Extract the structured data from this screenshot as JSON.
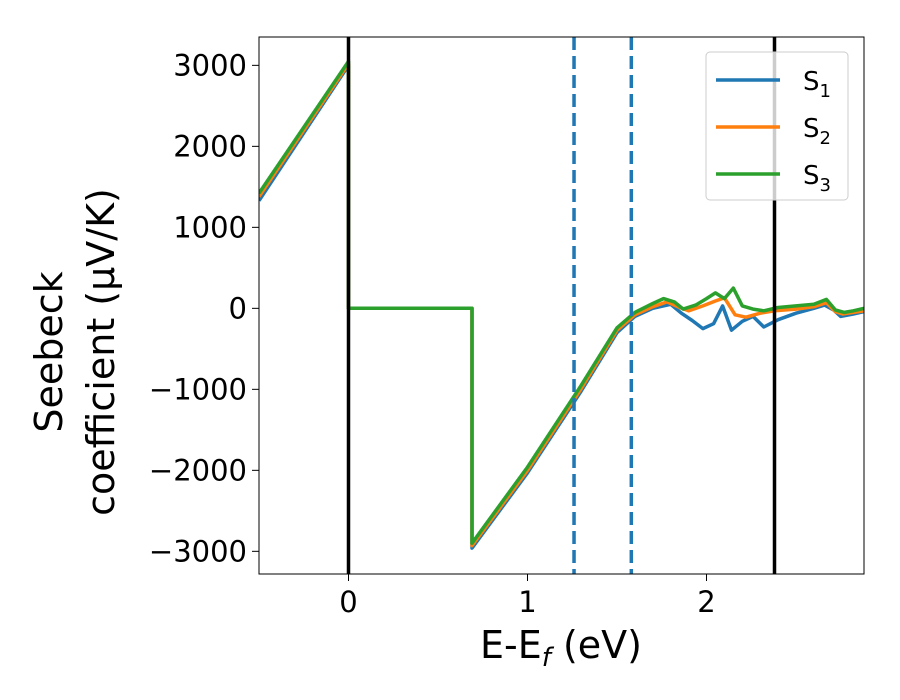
{
  "chart_data": {
    "type": "line",
    "xlabel": "E-E_f (eV)",
    "ylabel_line1": "Seebeck",
    "ylabel_line2": "coefficient (μV/K)",
    "xlim": [
      -0.5,
      2.88
    ],
    "ylim": [
      -3280,
      3350
    ],
    "xticks": [
      0,
      1,
      2
    ],
    "yticks": [
      3000,
      2000,
      1000,
      0,
      -1000,
      -2000,
      -3000
    ],
    "ytick_labels": [
      "3000",
      "2000",
      "1000",
      "0",
      "−1000",
      "−2000",
      "−3000"
    ],
    "xtick_labels": [
      "0",
      "1",
      "2"
    ],
    "grid": false,
    "legend_position": "top-right",
    "vlines": [
      {
        "x": 0.0,
        "style": "solid",
        "color": "#000000"
      },
      {
        "x": 2.38,
        "style": "solid",
        "color": "#000000"
      },
      {
        "x": 1.26,
        "style": "dashed",
        "color": "#1f77b4"
      },
      {
        "x": 1.58,
        "style": "dashed",
        "color": "#1f77b4"
      }
    ],
    "series": [
      {
        "name": "S1",
        "label_main": "S",
        "label_sub": "1",
        "color": "#1f77b4",
        "points": [
          [
            -0.5,
            1330
          ],
          [
            0.0,
            3000
          ],
          [
            0.0,
            0
          ],
          [
            0.69,
            0
          ],
          [
            0.69,
            -2960
          ],
          [
            1.0,
            -2030
          ],
          [
            1.3,
            -1020
          ],
          [
            1.5,
            -300
          ],
          [
            1.6,
            -100
          ],
          [
            1.7,
            0
          ],
          [
            1.8,
            50
          ],
          [
            1.86,
            -60
          ],
          [
            1.92,
            -150
          ],
          [
            1.98,
            -250
          ],
          [
            2.04,
            -190
          ],
          [
            2.09,
            30
          ],
          [
            2.14,
            -270
          ],
          [
            2.2,
            -160
          ],
          [
            2.26,
            -100
          ],
          [
            2.32,
            -230
          ],
          [
            2.4,
            -140
          ],
          [
            2.5,
            -60
          ],
          [
            2.6,
            0
          ],
          [
            2.66,
            40
          ],
          [
            2.71,
            -20
          ],
          [
            2.75,
            -100
          ],
          [
            2.82,
            -70
          ],
          [
            2.88,
            -40
          ]
        ]
      },
      {
        "name": "S2",
        "label_main": "S",
        "label_sub": "2",
        "color": "#ff7f0e",
        "points": [
          [
            -0.5,
            1380
          ],
          [
            0.0,
            3020
          ],
          [
            0.0,
            0
          ],
          [
            0.69,
            0
          ],
          [
            0.69,
            -2930
          ],
          [
            1.0,
            -2000
          ],
          [
            1.3,
            -990
          ],
          [
            1.5,
            -270
          ],
          [
            1.6,
            -80
          ],
          [
            1.7,
            20
          ],
          [
            1.78,
            80
          ],
          [
            1.84,
            20
          ],
          [
            1.9,
            -30
          ],
          [
            1.98,
            30
          ],
          [
            2.05,
            90
          ],
          [
            2.1,
            130
          ],
          [
            2.16,
            -80
          ],
          [
            2.22,
            -110
          ],
          [
            2.3,
            -60
          ],
          [
            2.38,
            -30
          ],
          [
            2.5,
            -10
          ],
          [
            2.6,
            20
          ],
          [
            2.67,
            70
          ],
          [
            2.72,
            -40
          ],
          [
            2.76,
            -70
          ],
          [
            2.82,
            -50
          ],
          [
            2.88,
            -30
          ]
        ]
      },
      {
        "name": "S3",
        "label_main": "S",
        "label_sub": "3",
        "color": "#2ca02c",
        "points": [
          [
            -0.5,
            1420
          ],
          [
            0.0,
            3050
          ],
          [
            0.0,
            0
          ],
          [
            0.69,
            0
          ],
          [
            0.69,
            -2900
          ],
          [
            1.0,
            -1960
          ],
          [
            1.3,
            -950
          ],
          [
            1.5,
            -240
          ],
          [
            1.6,
            -50
          ],
          [
            1.7,
            60
          ],
          [
            1.76,
            120
          ],
          [
            1.82,
            80
          ],
          [
            1.87,
            -10
          ],
          [
            1.94,
            40
          ],
          [
            2.0,
            120
          ],
          [
            2.05,
            190
          ],
          [
            2.1,
            120
          ],
          [
            2.15,
            250
          ],
          [
            2.2,
            30
          ],
          [
            2.26,
            -10
          ],
          [
            2.32,
            -30
          ],
          [
            2.4,
            10
          ],
          [
            2.5,
            30
          ],
          [
            2.6,
            50
          ],
          [
            2.67,
            110
          ],
          [
            2.72,
            -20
          ],
          [
            2.77,
            -50
          ],
          [
            2.82,
            -30
          ],
          [
            2.88,
            0
          ]
        ]
      }
    ]
  }
}
